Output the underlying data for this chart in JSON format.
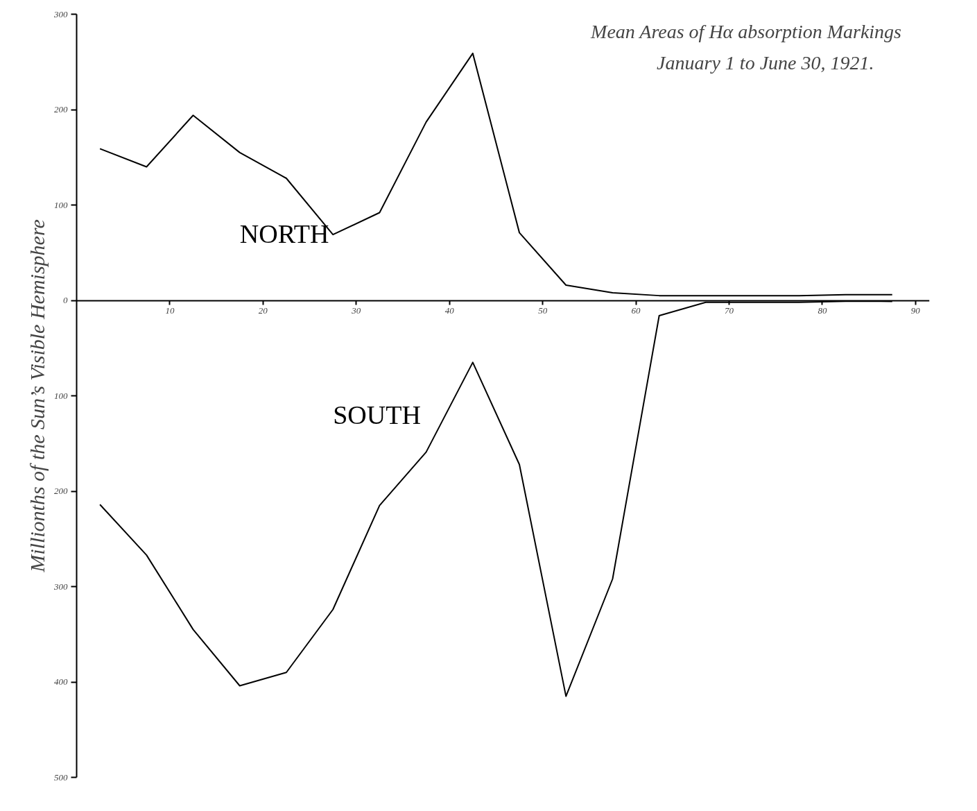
{
  "chart_data": {
    "type": "line",
    "title": "Mean Areas of Hα absorption Markings",
    "subtitle": "January 1 to June 30, 1921.",
    "ylabel": "Millionths of the Sun’s Visible Hemisphere",
    "x": [
      2.5,
      7.5,
      12.5,
      17.5,
      22.5,
      27.5,
      32.5,
      37.5,
      42.5,
      47.5,
      52.5,
      57.5,
      62.5,
      67.5,
      72.5,
      77.5,
      82.5,
      87.5
    ],
    "series": [
      {
        "name": "NORTH",
        "color": "#000000",
        "values": [
          159,
          140,
          194,
          155,
          128,
          69,
          92,
          187,
          259,
          71,
          16,
          8,
          5,
          5,
          5,
          5,
          6,
          6
        ]
      },
      {
        "name": "SOUTH",
        "color": "#000000",
        "values": [
          -214,
          -267,
          -345,
          -404,
          -390,
          -324,
          -215,
          -159,
          -65,
          -172,
          -415,
          -292,
          -16,
          -2,
          -2,
          -2,
          -1,
          -1
        ]
      }
    ],
    "xlim": [
      0,
      91.5
    ],
    "xticks": [
      10,
      20,
      30,
      40,
      50,
      60,
      70,
      80,
      90
    ],
    "ylim": [
      -500,
      300
    ],
    "yticks": [
      {
        "value": -500,
        "label": "500"
      },
      {
        "value": -400,
        "label": "400"
      },
      {
        "value": -300,
        "label": "300"
      },
      {
        "value": -200,
        "label": "200"
      },
      {
        "value": -100,
        "label": "100"
      },
      0,
      100,
      200,
      300
    ],
    "grid": false,
    "marker": "none",
    "line_style": "solid"
  }
}
